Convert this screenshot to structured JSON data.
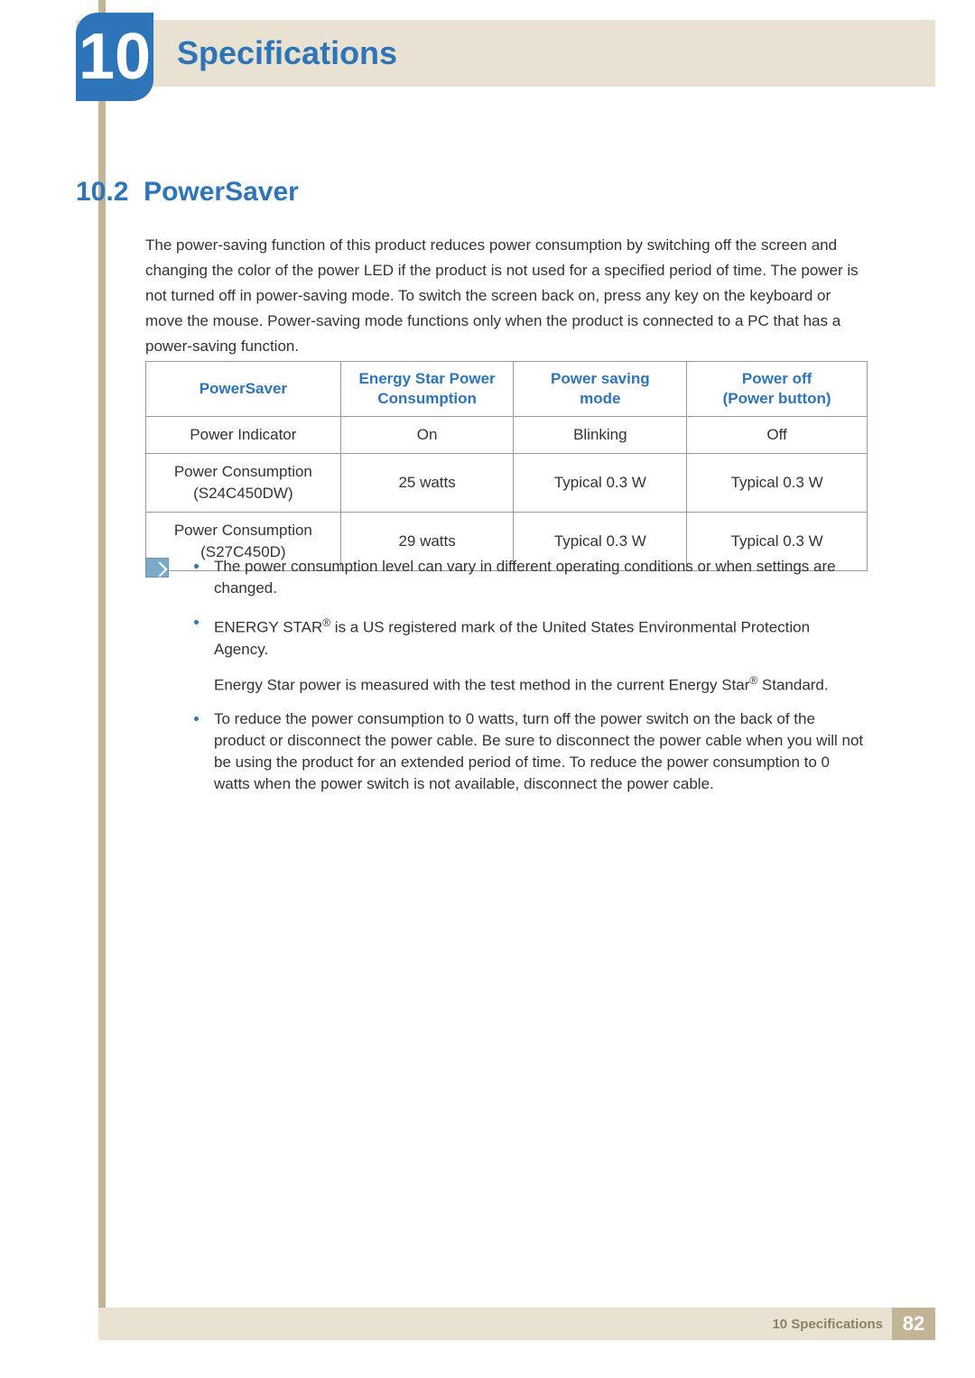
{
  "colors": {
    "accent_blue": "#2e74b8",
    "banner_beige": "#e9e2d2",
    "sidebar_tan": "#c2b496",
    "text": "#333333",
    "border": "#999999",
    "footer_text": "#8b8265",
    "note_icon_bg": "#7da9c9"
  },
  "chapter": {
    "number": "10",
    "title": "Specifications"
  },
  "section": {
    "number": "10.2",
    "title": "PowerSaver"
  },
  "intro_paragraph": "The power-saving function of this product reduces power consumption by switching off the screen and changing the color of the power LED if the product is not used for a specified period of time. The power is not turned off in power-saving mode. To switch the screen back on, press any key on the keyboard or move the mouse. Power-saving mode functions only when the product is connected to a PC that has a power-saving function.",
  "table": {
    "headers": [
      "PowerSaver",
      "Energy Star Power\nConsumption",
      "Power saving\nmode",
      "Power off\n(Power button)"
    ],
    "rows": [
      [
        "Power Indicator",
        "On",
        "Blinking",
        "Off"
      ],
      [
        "Power Consumption\n(S24C450DW)",
        "25 watts",
        "Typical 0.3 W",
        "Typical 0.3 W"
      ],
      [
        "Power Consumption\n(S27C450D)",
        "29 watts",
        "Typical 0.3 W",
        "Typical 0.3 W"
      ]
    ],
    "col_widths_pct": [
      27,
      24,
      24,
      25
    ]
  },
  "notes": [
    {
      "text": "The power consumption level can vary in different operating conditions or when settings are changed."
    },
    {
      "text": "ENERGY STAR® is a US registered mark of the United States Environmental Protection Agency.",
      "sub": "Energy Star power is measured with the test method in the current Energy Star® Standard."
    },
    {
      "text": "To reduce the power consumption to 0 watts, turn off the power switch on the back of the product or disconnect the power cable. Be sure to disconnect the power cable when you will not be using the product for an extended period of time. To reduce the power consumption to 0 watts when the power switch is not available, disconnect the power cable."
    }
  ],
  "footer": {
    "text": "10 Specifications",
    "page": "82"
  }
}
